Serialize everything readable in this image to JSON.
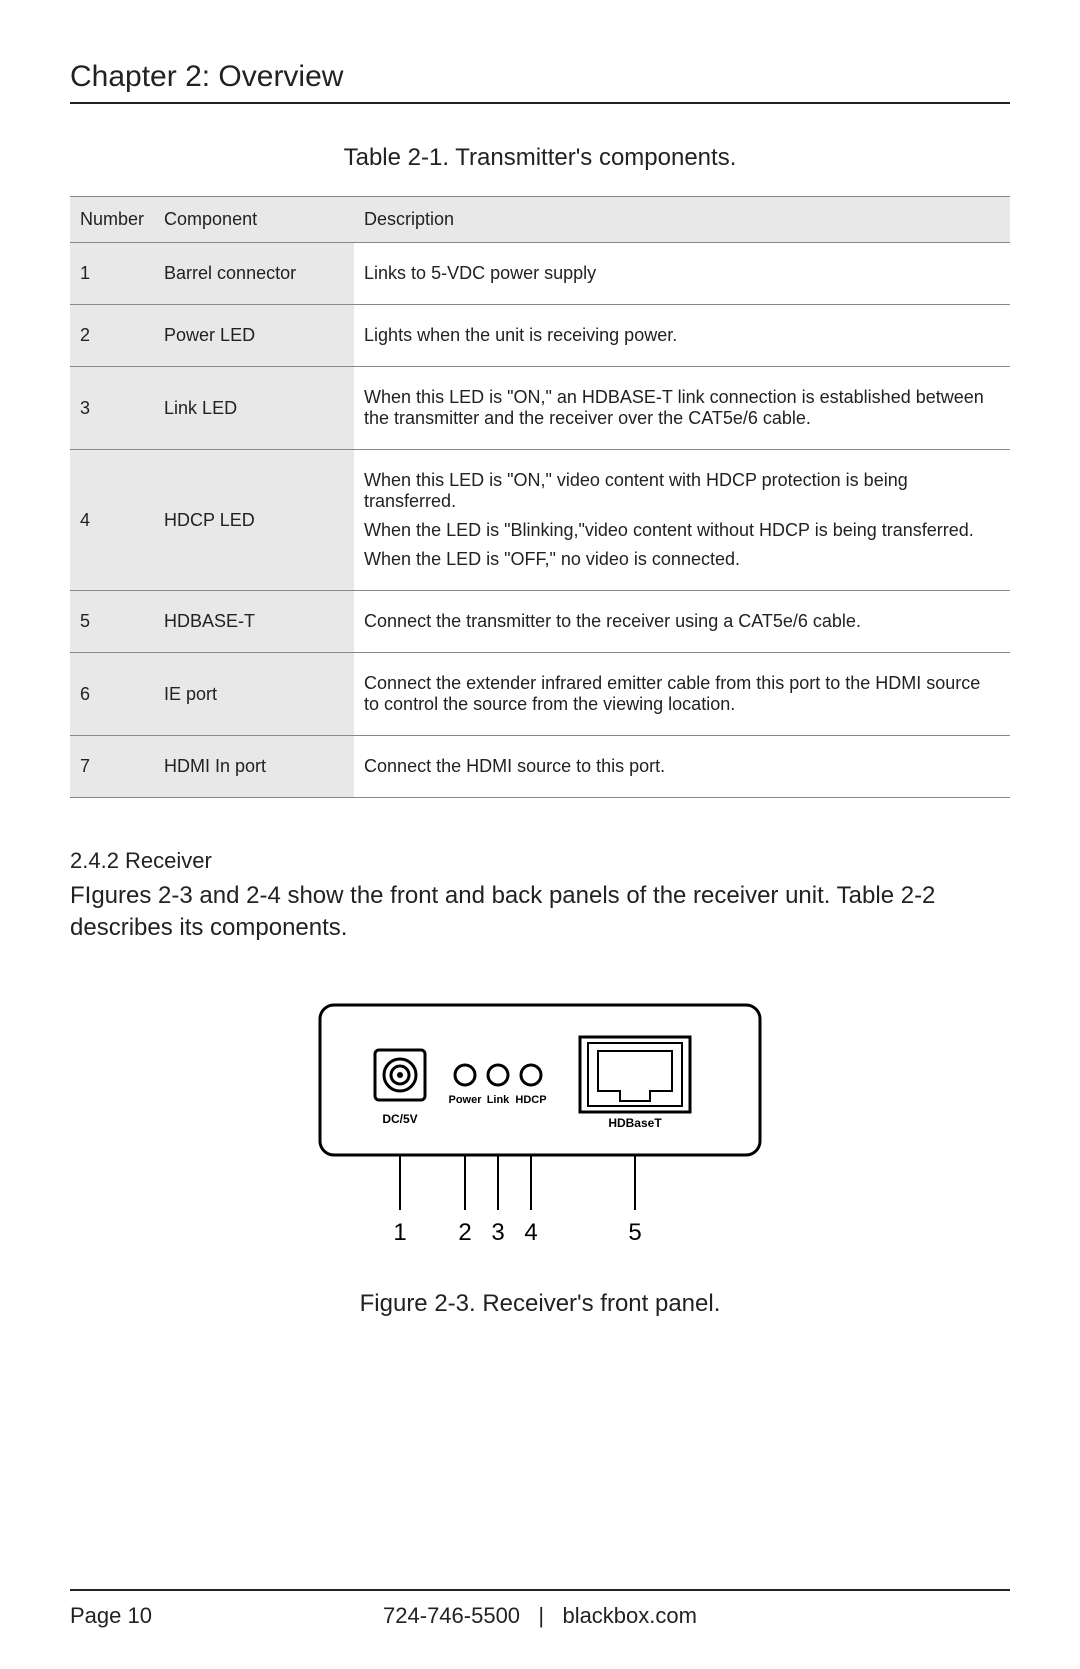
{
  "chapter_title": "Chapter 2: Overview",
  "table": {
    "caption": "Table 2-1. Transmitter's components.",
    "headers": {
      "number": "Number",
      "component": "Component",
      "description": "Description"
    },
    "rows": [
      {
        "number": "1",
        "component": "Barrel connector",
        "description": [
          "Links to 5-VDC power supply"
        ]
      },
      {
        "number": "2",
        "component": "Power LED",
        "description": [
          "Lights when the unit is receiving power."
        ]
      },
      {
        "number": "3",
        "component": "Link LED",
        "description": [
          "When this LED is \"ON,\" an HDBASE-T link connection is established between the transmitter and the receiver over the CAT5e/6 cable."
        ]
      },
      {
        "number": "4",
        "component": "HDCP LED",
        "description": [
          "When this LED is \"ON,\" video content with HDCP protection is being transferred.",
          "When the LED is \"Blinking,\"video content without HDCP is being transferred.",
          "When the LED is \"OFF,\" no video is connected."
        ]
      },
      {
        "number": "5",
        "component": "HDBASE-T",
        "description": [
          "Connect the transmitter to the receiver using a CAT5e/6 cable."
        ]
      },
      {
        "number": "6",
        "component": "IE port",
        "description": [
          "Connect the extender infrared emitter cable from this port to the HDMI source to control the source from the viewing location."
        ]
      },
      {
        "number": "7",
        "component": "HDMI In port",
        "description": [
          "Connect the HDMI source to this port."
        ]
      }
    ]
  },
  "subsection": {
    "title": "2.4.2 Receiver",
    "body": "FIgures 2-3 and 2-4 show the front and back panels of the receiver unit. Table 2-2 describes its components."
  },
  "figure": {
    "caption": "Figure 2-3. Receiver's front panel.",
    "labels": {
      "dc5v": "DC/5V",
      "power": "Power",
      "link": "Link",
      "hdcp": "HDCP",
      "hdbaset": "HDBaseT"
    },
    "callouts": [
      "1",
      "2",
      "3",
      "4",
      "5"
    ]
  },
  "footer": {
    "page": "Page 10",
    "phone": "724-746-5500",
    "sep": "|",
    "site": "blackbox.com"
  }
}
